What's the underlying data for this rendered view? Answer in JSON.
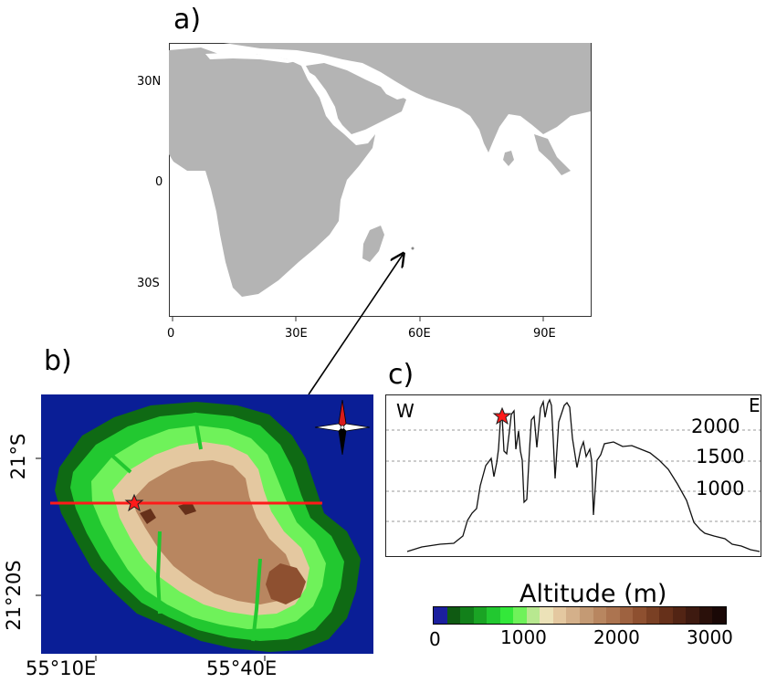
{
  "panels": {
    "a": {
      "label": "a)"
    },
    "b": {
      "label": "b)"
    },
    "c": {
      "label": "c)"
    }
  },
  "map_a": {
    "lat_ticks": [
      "30N",
      "0",
      "30S"
    ],
    "lon_ticks": [
      "0",
      "30E",
      "60E",
      "90E"
    ],
    "land_color": "#b4b4b4"
  },
  "map_b": {
    "lat_ticks": [
      "21°S",
      "21°20S"
    ],
    "lon_ticks": [
      "55°10E",
      "55°40E"
    ],
    "ocean_color": "#0a1e96",
    "transect_color": "#ff1a1a",
    "compass": "compass-rose-icon"
  },
  "profile_c": {
    "west_label": "W",
    "east_label": "E",
    "y_ticks": [
      "2000",
      "1500",
      "1000"
    ],
    "star": "red-star-icon"
  },
  "legend": {
    "title": "Altitude (m)",
    "ticks": [
      "0",
      "1000",
      "2000",
      "3000"
    ],
    "colors": [
      "#1b1f9e",
      "#0f5a12",
      "#12801a",
      "#1aa424",
      "#22c830",
      "#33e83a",
      "#6ff25a",
      "#b8e890",
      "#ece2b8",
      "#e4c8a0",
      "#d4b08a",
      "#c49a74",
      "#b88660",
      "#ac7450",
      "#9e6240",
      "#8e5030",
      "#7a4024",
      "#66301a",
      "#522414",
      "#3e1a10",
      "#2a100a",
      "#1a0806"
    ]
  }
}
